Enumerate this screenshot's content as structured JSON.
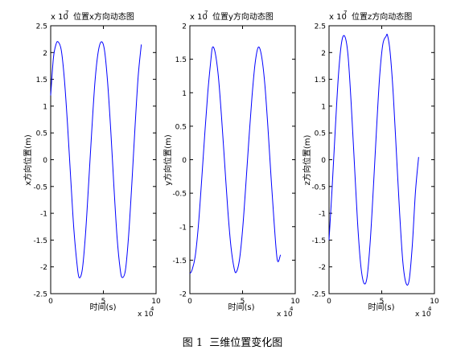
{
  "figure": {
    "caption_label": "图 1",
    "caption_text": "三维位置变化图"
  },
  "colors": {
    "line": "#0000ff",
    "axis": "#000000",
    "background": "#ffffff"
  },
  "chart_data": [
    {
      "type": "line",
      "title": "位置x方向动态图",
      "title_exponent_base": "x 10",
      "title_exponent": "7",
      "xlabel": "时间(s)",
      "ylabel": "x方向位置(m)",
      "x_exponent_base": "x 10",
      "x_exponent": "4",
      "xlim": [
        0,
        10
      ],
      "ylim": [
        -2.5,
        2.5
      ],
      "xticks": [
        "0",
        "5",
        "10"
      ],
      "yticks": [
        "2.5",
        "2",
        "1.5",
        "1",
        "0.5",
        "0",
        "-0.5",
        "-1",
        "-1.5",
        "-2",
        "-2.5"
      ],
      "grid": false,
      "series": [
        {
          "x": [
            0,
            0.26,
            0.5,
            0.7,
            1.0,
            1.3,
            1.6,
            1.9,
            2.2,
            2.5,
            2.7,
            3.0,
            3.3,
            3.6,
            3.9,
            4.2,
            4.5,
            4.8,
            5.1,
            5.4,
            5.7,
            6.0,
            6.3,
            6.6,
            6.8,
            7.1,
            7.4,
            7.7,
            8.0,
            8.3,
            8.6
          ],
          "y": [
            1.2,
            1.9,
            2.15,
            2.2,
            2.05,
            1.5,
            0.65,
            -0.35,
            -1.3,
            -1.95,
            -2.2,
            -2.05,
            -1.4,
            -0.45,
            0.55,
            1.45,
            2.0,
            2.2,
            2.05,
            1.45,
            0.55,
            -0.5,
            -1.45,
            -2.05,
            -2.2,
            -2.05,
            -1.4,
            -0.45,
            0.6,
            1.55,
            2.15
          ]
        }
      ]
    },
    {
      "type": "line",
      "title": "位置y方向动态图",
      "title_exponent_base": "x 10",
      "title_exponent": "7",
      "xlabel": "时间(s)",
      "ylabel": "y方向位置(m)",
      "x_exponent_base": "x 10",
      "x_exponent": "4",
      "xlim": [
        0,
        10
      ],
      "ylim": [
        -2,
        2
      ],
      "xticks": [
        "0",
        "5",
        "10"
      ],
      "yticks": [
        "2",
        "1.5",
        "1",
        "0.5",
        "0",
        "-0.5",
        "-1",
        "-1.5",
        "-2"
      ],
      "grid": false,
      "series": [
        {
          "x": [
            0,
            0.2,
            0.5,
            0.8,
            1.1,
            1.4,
            1.7,
            2.0,
            2.15,
            2.4,
            2.7,
            3.0,
            3.3,
            3.6,
            3.9,
            4.2,
            4.4,
            4.7,
            5.0,
            5.3,
            5.6,
            5.9,
            6.2,
            6.5,
            6.8,
            7.1,
            7.4,
            7.7,
            8.0,
            8.3,
            8.6
          ],
          "y": [
            -1.7,
            -1.65,
            -1.45,
            -1.0,
            -0.35,
            0.35,
            1.0,
            1.5,
            1.68,
            1.6,
            1.25,
            0.65,
            -0.05,
            -0.75,
            -1.3,
            -1.62,
            -1.68,
            -1.5,
            -1.05,
            -0.4,
            0.3,
            0.95,
            1.45,
            1.68,
            1.55,
            1.15,
            0.5,
            -0.25,
            -0.95,
            -1.5,
            -1.42
          ]
        }
      ]
    },
    {
      "type": "line",
      "title": "位置z方向动态图",
      "title_exponent_base": "x 10",
      "title_exponent": "7",
      "xlabel": "时间(s)",
      "ylabel": "z方向位置(m)",
      "x_exponent_base": "x 10",
      "x_exponent": "4",
      "xlim": [
        0,
        10
      ],
      "ylim": [
        -2.5,
        2.5
      ],
      "xticks": [
        "0",
        "5",
        "10"
      ],
      "yticks": [
        "2.5",
        "2",
        "1.5",
        "1",
        "0.5",
        "0",
        "-0.5",
        "-1",
        "-1.5",
        "-2",
        "-2.5"
      ],
      "grid": false,
      "series": [
        {
          "x": [
            0,
            0.3,
            0.6,
            0.9,
            1.2,
            1.5,
            1.8,
            2.1,
            2.4,
            2.7,
            3.0,
            3.3,
            3.6,
            3.9,
            4.2,
            4.5,
            4.8,
            5.1,
            5.4,
            5.55,
            5.8,
            6.1,
            6.4,
            6.7,
            7.0,
            7.3,
            7.6,
            7.9,
            8.2,
            8.5
          ],
          "y": [
            -1.5,
            -0.5,
            0.6,
            1.6,
            2.2,
            2.3,
            1.95,
            1.05,
            -0.05,
            -1.15,
            -1.95,
            -2.3,
            -2.2,
            -1.55,
            -0.55,
            0.55,
            1.55,
            2.15,
            2.3,
            2.32,
            2.0,
            1.2,
            0.1,
            -1.0,
            -1.9,
            -2.3,
            -2.25,
            -1.6,
            -0.6,
            0.05
          ]
        }
      ]
    }
  ]
}
